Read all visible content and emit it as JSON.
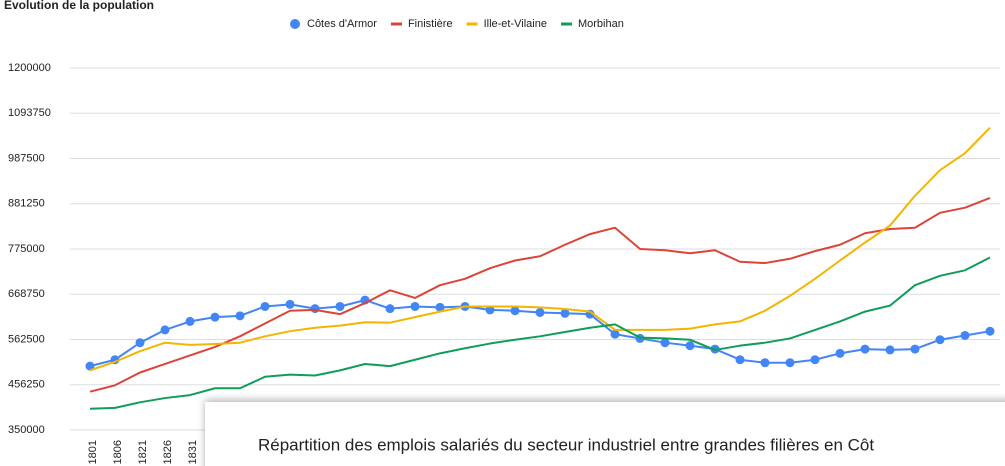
{
  "chart_data": {
    "type": "line",
    "title": "Évolution de la population",
    "categories": [
      "1801",
      "1806",
      "1821",
      "1826",
      "1831",
      null,
      null,
      null,
      null,
      null,
      null,
      null,
      null,
      null,
      null,
      null,
      null,
      null,
      null,
      null,
      null,
      null,
      null,
      null,
      null,
      null,
      null,
      null,
      null,
      null,
      null,
      null,
      null,
      null,
      null,
      null,
      null
    ],
    "series": [
      {
        "name": "Côtes d'Armor",
        "color": "#4285f4",
        "marker": true,
        "values": [
          500000,
          515000,
          555000,
          585000,
          605000,
          615000,
          618000,
          640000,
          645000,
          635000,
          640000,
          655000,
          635000,
          640000,
          638000,
          640000,
          632000,
          630000,
          626000,
          624000,
          622000,
          575000,
          565000,
          555000,
          548000,
          540000,
          515000,
          508000,
          508000,
          515000,
          530000,
          540000,
          538000,
          540000,
          562000,
          572000,
          582000
        ]
      },
      {
        "name": "Finistière",
        "color": "#db4437",
        "marker": false,
        "values": [
          440000,
          455000,
          485000,
          505000,
          525000,
          545000,
          570000,
          600000,
          630000,
          632000,
          622000,
          648000,
          678000,
          660000,
          690000,
          705000,
          730000,
          748000,
          758000,
          785000,
          810000,
          825000,
          775000,
          772000,
          765000,
          772000,
          745000,
          742000,
          752000,
          770000,
          785000,
          812000,
          822000,
          825000,
          860000,
          872000,
          895000
        ]
      },
      {
        "name": "Ille-et-Vilaine",
        "color": "#f4b400",
        "marker": false,
        "values": [
          490000,
          510000,
          535000,
          555000,
          550000,
          552000,
          555000,
          570000,
          582000,
          590000,
          595000,
          603000,
          602000,
          615000,
          628000,
          640000,
          640000,
          640000,
          638000,
          634000,
          628000,
          585000,
          585000,
          585000,
          588000,
          598000,
          605000,
          630000,
          665000,
          705000,
          748000,
          790000,
          830000,
          900000,
          960000,
          1000000,
          1060000
        ]
      },
      {
        "name": "Morbihan",
        "color": "#0f9d58",
        "marker": false,
        "values": [
          400000,
          402000,
          415000,
          425000,
          432000,
          448000,
          448000,
          475000,
          480000,
          478000,
          490000,
          505000,
          500000,
          515000,
          530000,
          542000,
          553000,
          562000,
          570000,
          580000,
          590000,
          598000,
          567000,
          565000,
          562000,
          538000,
          548000,
          555000,
          565000,
          585000,
          605000,
          628000,
          642000,
          690000,
          712000,
          725000,
          755000
        ]
      }
    ],
    "ylim": [
      350000,
      1200000
    ],
    "yticks": [
      350000,
      456250,
      562500,
      668750,
      775000,
      881250,
      987500,
      1093750,
      1200000
    ],
    "grid": true,
    "legend": "top"
  },
  "overlay": {
    "title": "Répartition des emplois salariés du secteur industriel entre grandes filières en Côt"
  }
}
